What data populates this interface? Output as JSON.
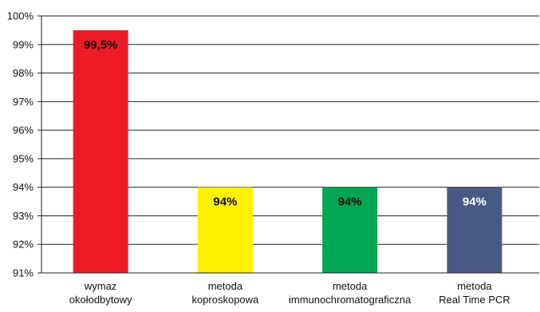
{
  "chart_data": {
    "type": "bar",
    "categories": [
      [
        "wymaz",
        "okołodbytowy"
      ],
      [
        "metoda",
        "koproskopowa"
      ],
      [
        "metoda",
        "immunochromatograficzna"
      ],
      [
        "metoda",
        "Real Time PCR"
      ]
    ],
    "values": [
      99.5,
      94,
      94,
      94
    ],
    "data_labels": [
      "99,5%",
      "94%",
      "94%",
      "94%"
    ],
    "bar_colors": [
      "#ed1c24",
      "#fff200",
      "#00a651",
      "#475a84"
    ],
    "label_colors": [
      "#111111",
      "#111111",
      "#111111",
      "#ffffff"
    ],
    "ylim": [
      91,
      100
    ],
    "yticks": [
      91,
      92,
      93,
      94,
      95,
      96,
      97,
      98,
      99,
      100
    ],
    "ytick_labels": [
      "91%",
      "92%",
      "93%",
      "94%",
      "95%",
      "96%",
      "97%",
      "98%",
      "99%",
      "100%"
    ],
    "grid": true,
    "title": "",
    "xlabel": "",
    "ylabel": ""
  }
}
